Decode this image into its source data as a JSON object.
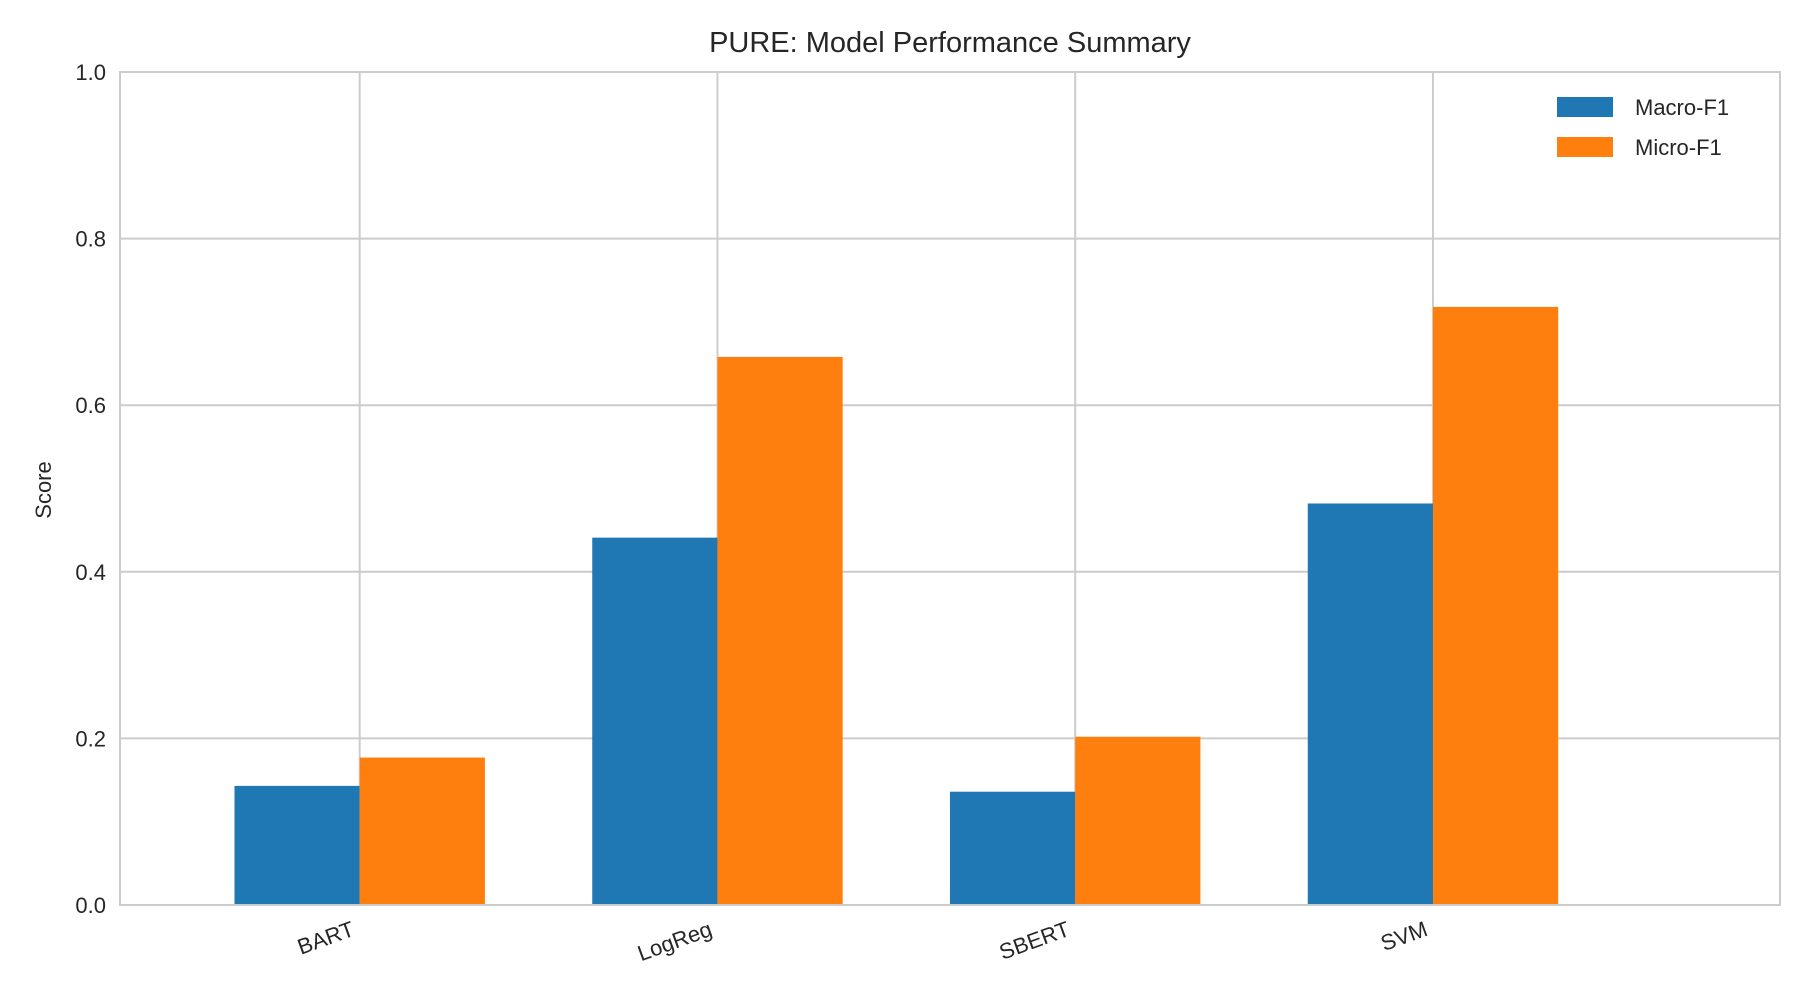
{
  "chart_data": {
    "type": "bar",
    "title": "PURE: Model Performance Summary",
    "xlabel": "",
    "ylabel": "Score",
    "categories": [
      "BART",
      "LogReg",
      "SBERT",
      "SVM"
    ],
    "series": [
      {
        "name": "Macro-F1",
        "color": "#1f77b4",
        "values": [
          0.143,
          0.441,
          0.136,
          0.482
        ]
      },
      {
        "name": "Micro-F1",
        "color": "#ff7f0e",
        "values": [
          0.177,
          0.658,
          0.202,
          0.718
        ]
      }
    ],
    "ylim": [
      0.0,
      1.0
    ],
    "yticks": [
      "0.0",
      "0.2",
      "0.4",
      "0.6",
      "0.8",
      "1.0"
    ],
    "grid": true,
    "legend_position": "top-right"
  }
}
